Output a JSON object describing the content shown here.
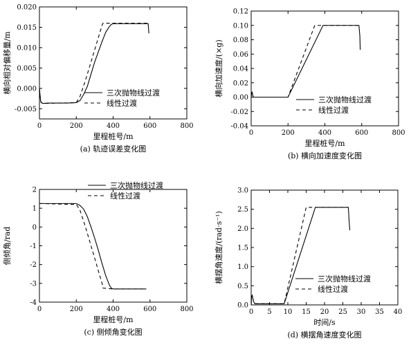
{
  "chart_data": [
    {
      "type": "line",
      "caption": "(a) 轨迹误差变化图",
      "xlabel": "里程桩号/m",
      "ylabel": "横向相对偏移量/m",
      "xlim": [
        0,
        800
      ],
      "ylim": [
        -0.005,
        0.02
      ],
      "extra_bottom": -0.0075,
      "xticks": [
        0,
        200,
        400,
        600,
        800
      ],
      "yticks": [
        -0.005,
        0.0,
        0.005,
        0.01,
        0.015,
        0.02
      ],
      "ytick_labels": [
        "-0.005",
        "0.000",
        "0.005",
        "0.010",
        "0.015",
        "0.020"
      ],
      "legend_position": "lower-right",
      "series": [
        {
          "name": "三次抛物线过渡",
          "dash": "solid",
          "x": [
            0,
            3,
            6,
            10,
            20,
            50,
            100,
            150,
            200,
            220,
            240,
            260,
            280,
            300,
            320,
            340,
            360,
            380,
            390,
            400,
            500,
            590,
            592,
            594
          ],
          "y": [
            0.0,
            -0.0015,
            -0.003,
            -0.0035,
            -0.0037,
            -0.0036,
            -0.0036,
            -0.0036,
            -0.0035,
            -0.003,
            -0.0015,
            0.0005,
            0.0035,
            0.0065,
            0.009,
            0.0115,
            0.0138,
            0.0152,
            0.0157,
            0.0159,
            0.0159,
            0.0159,
            0.0148,
            0.0135
          ]
        },
        {
          "name": "线性过渡",
          "dash": "dashed",
          "x": [
            0,
            3,
            6,
            10,
            20,
            200,
            220,
            250,
            280,
            310,
            340,
            345,
            400,
            500,
            590
          ],
          "y": [
            0.0,
            -0.0015,
            -0.003,
            -0.0035,
            -0.0037,
            -0.0035,
            -0.002,
            0.002,
            0.0065,
            0.011,
            0.0155,
            0.016,
            0.016,
            0.016,
            0.016
          ]
        }
      ]
    },
    {
      "type": "line",
      "caption": "(b) 横向加速度变化图",
      "xlabel": "里程桩号/m",
      "ylabel": "横向加速度/(×g)",
      "xlim": [
        0,
        800
      ],
      "ylim": [
        -0.04,
        0.12
      ],
      "xticks": [
        0,
        200,
        400,
        600,
        800
      ],
      "yticks": [
        -0.04,
        -0.02,
        0.0,
        0.02,
        0.04,
        0.06,
        0.08,
        0.1,
        0.12
      ],
      "ytick_labels": [
        "-0.04",
        "-0.02",
        "0.00",
        "0.02",
        "0.04",
        "0.06",
        "0.08",
        "0.10",
        "0.12"
      ],
      "legend_position": "lower-right",
      "series": [
        {
          "name": "三次抛物线过渡",
          "dash": "solid",
          "x": [
            0,
            2,
            5,
            8,
            12,
            20,
            200,
            390,
            400,
            585,
            590,
            592
          ],
          "y": [
            0.0,
            0.006,
            0.007,
            0.003,
            0.0,
            0.0,
            0.0,
            0.1,
            0.1,
            0.1,
            0.085,
            0.066
          ]
        },
        {
          "name": "线性过渡",
          "dash": "dashed",
          "x": [
            0,
            2,
            5,
            8,
            12,
            20,
            200,
            345,
            400,
            585
          ],
          "y": [
            0.0,
            0.006,
            0.007,
            0.003,
            0.0,
            0.0,
            0.0,
            0.1,
            0.1,
            0.1
          ]
        }
      ]
    },
    {
      "type": "line",
      "caption": "(c) 侧倾角变化图",
      "xlabel": "里程桩号/m",
      "ylabel": "侧倾角/rad",
      "xlim": [
        0,
        800
      ],
      "ylim": [
        -4,
        2
      ],
      "xticks": [
        0,
        200,
        400,
        600,
        800
      ],
      "yticks": [
        -4,
        -3,
        -2,
        -1,
        0,
        1,
        2
      ],
      "ytick_labels": [
        "-4",
        "-3",
        "-2",
        "-1",
        "0",
        "1",
        "2"
      ],
      "legend_position": "top-right",
      "series": [
        {
          "name": "三次抛物线过渡",
          "dash": "solid",
          "x": [
            0,
            200,
            220,
            240,
            260,
            280,
            300,
            320,
            340,
            360,
            380,
            390,
            400,
            500,
            580
          ],
          "y": [
            1.25,
            1.25,
            1.15,
            0.95,
            0.55,
            0.0,
            -0.6,
            -1.25,
            -1.95,
            -2.6,
            -3.1,
            -3.25,
            -3.3,
            -3.3,
            -3.3
          ]
        },
        {
          "name": "线性过渡",
          "dash": "dashed",
          "x": [
            0,
            200,
            220,
            250,
            280,
            310,
            340,
            345,
            400,
            500,
            580
          ],
          "y": [
            1.25,
            1.2,
            0.9,
            0.0,
            -1.0,
            -2.0,
            -3.0,
            -3.25,
            -3.3,
            -3.3,
            -3.3
          ]
        }
      ]
    },
    {
      "type": "line",
      "caption": "(d) 横摆角速度变化图",
      "xlabel": "时间/s",
      "ylabel": "横摆角速度/(rad·s⁻¹)",
      "xlim": [
        0,
        40
      ],
      "ylim": [
        0,
        3.0
      ],
      "xticks": [
        0,
        5,
        10,
        15,
        20,
        25,
        30,
        35,
        40
      ],
      "yticks": [
        0,
        0.5,
        1.0,
        1.5,
        2.0,
        2.5,
        3.0
      ],
      "ytick_labels": [
        "0.0",
        "0.5",
        "1.0",
        "1.5",
        "2.0",
        "2.5",
        "3.0"
      ],
      "legend_position": "lower-right",
      "series": [
        {
          "name": "三次抛物线过渡",
          "dash": "solid",
          "x": [
            0,
            0.1,
            0.3,
            0.6,
            1.0,
            2.0,
            9.0,
            17.5,
            18.0,
            26.5,
            26.7,
            26.9
          ],
          "y": [
            0.0,
            0.2,
            0.25,
            0.1,
            0.03,
            0.03,
            0.03,
            2.55,
            2.55,
            2.55,
            2.2,
            1.95
          ]
        },
        {
          "name": "线性过渡",
          "dash": "dashed",
          "x": [
            0,
            0.1,
            0.3,
            0.6,
            1.0,
            2.0,
            9.0,
            15.0,
            18.0,
            26.5
          ],
          "y": [
            0.0,
            0.2,
            0.25,
            0.1,
            0.03,
            0.03,
            0.03,
            2.55,
            2.55,
            2.55
          ]
        }
      ]
    }
  ]
}
